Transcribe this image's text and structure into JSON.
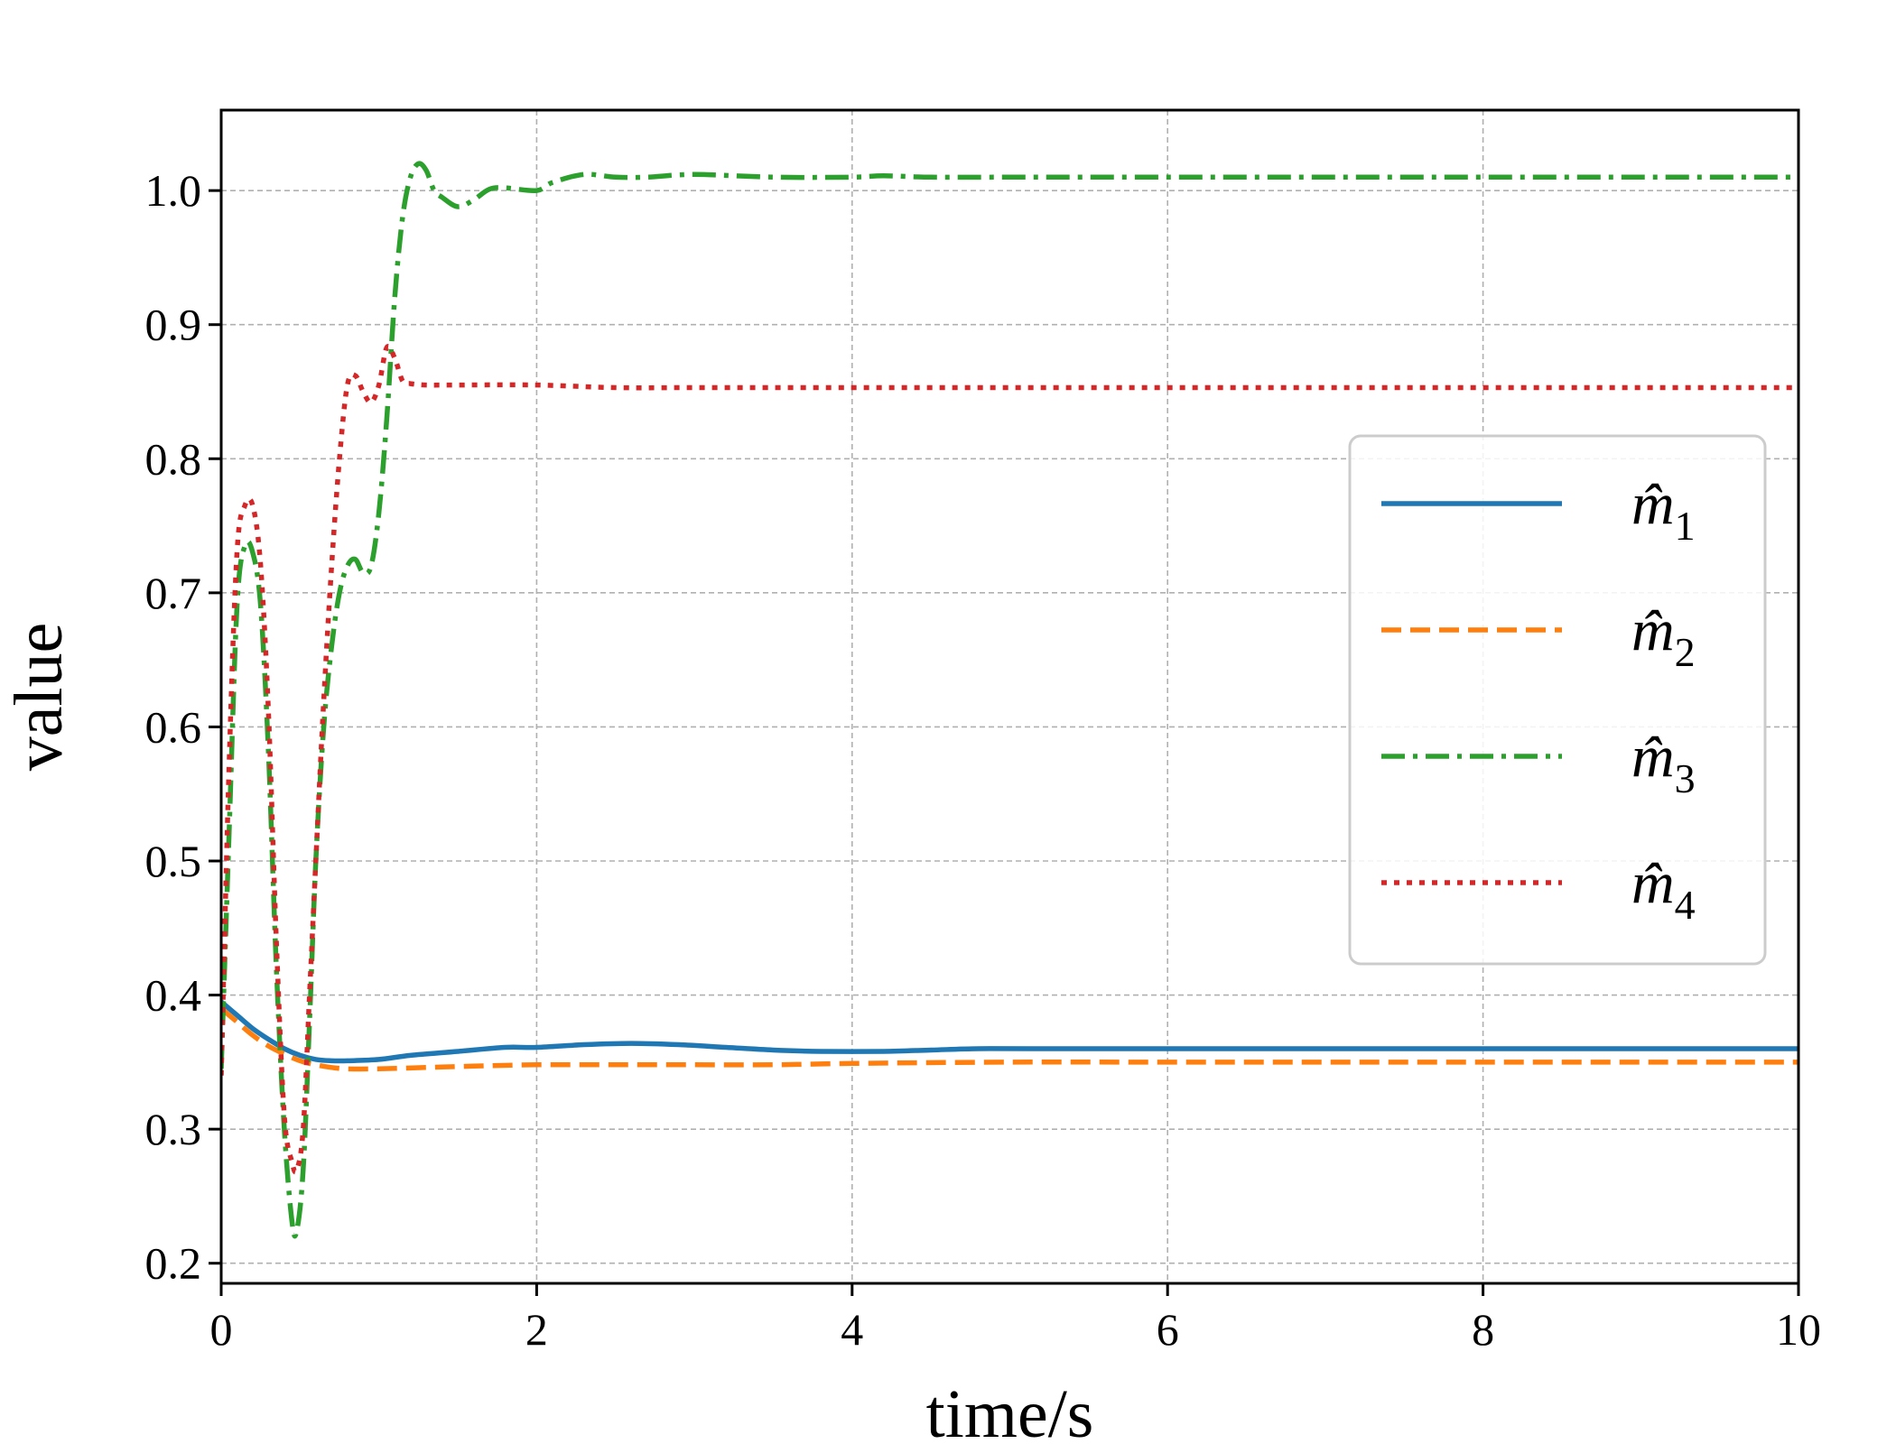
{
  "chart_data": {
    "type": "line",
    "title": "",
    "xlabel": "time/s",
    "ylabel": "value",
    "xlim": [
      0,
      10
    ],
    "ylim": [
      0.185,
      1.06
    ],
    "xticks": [
      0,
      2,
      4,
      6,
      8,
      10
    ],
    "xtick_labels": [
      "0",
      "2",
      "4",
      "6",
      "8",
      "10"
    ],
    "yticks": [
      0.2,
      0.3,
      0.4,
      0.5,
      0.6,
      0.7,
      0.8,
      0.9,
      1.0
    ],
    "ytick_labels": [
      "0.2",
      "0.3",
      "0.4",
      "0.5",
      "0.6",
      "0.7",
      "0.8",
      "0.9",
      "1.0"
    ],
    "grid": true,
    "legend_position": "center-right",
    "series": [
      {
        "name": "m̂1",
        "label_base": "m̂",
        "label_sub": "1",
        "color": "#1f77b4",
        "style": "solid",
        "x": [
          0,
          0.1,
          0.2,
          0.3,
          0.4,
          0.5,
          0.6,
          0.7,
          0.8,
          1.0,
          1.2,
          1.5,
          1.8,
          2.0,
          2.3,
          2.6,
          2.9,
          3.2,
          3.5,
          3.8,
          4.2,
          4.5,
          4.8,
          5.2,
          6,
          7,
          8,
          9,
          10
        ],
        "y": [
          0.395,
          0.385,
          0.375,
          0.367,
          0.36,
          0.355,
          0.352,
          0.351,
          0.351,
          0.352,
          0.355,
          0.358,
          0.361,
          0.361,
          0.363,
          0.364,
          0.363,
          0.361,
          0.359,
          0.358,
          0.358,
          0.359,
          0.36,
          0.36,
          0.36,
          0.36,
          0.36,
          0.36,
          0.36
        ]
      },
      {
        "name": "m̂2",
        "label_base": "m̂",
        "label_sub": "2",
        "color": "#ff7f0e",
        "style": "dashed",
        "x": [
          0,
          0.1,
          0.2,
          0.3,
          0.4,
          0.5,
          0.6,
          0.7,
          0.8,
          1.0,
          1.3,
          1.6,
          2.0,
          2.5,
          3.0,
          3.5,
          4.0,
          5,
          6,
          7,
          8,
          9,
          10
        ],
        "y": [
          0.39,
          0.38,
          0.37,
          0.362,
          0.356,
          0.351,
          0.348,
          0.346,
          0.345,
          0.345,
          0.346,
          0.347,
          0.348,
          0.348,
          0.348,
          0.348,
          0.349,
          0.35,
          0.35,
          0.35,
          0.35,
          0.35,
          0.35
        ]
      },
      {
        "name": "m̂3",
        "label_base": "m̂",
        "label_sub": "3",
        "color": "#2ca02c",
        "style": "dashdot",
        "x": [
          0,
          0.05,
          0.1,
          0.15,
          0.2,
          0.25,
          0.3,
          0.35,
          0.4,
          0.45,
          0.48,
          0.52,
          0.56,
          0.6,
          0.65,
          0.7,
          0.75,
          0.8,
          0.85,
          0.9,
          0.95,
          1.0,
          1.05,
          1.1,
          1.15,
          1.2,
          1.25,
          1.3,
          1.35,
          1.4,
          1.5,
          1.6,
          1.7,
          1.8,
          2.0,
          2.1,
          2.3,
          2.5,
          2.7,
          3.0,
          3.5,
          4.0,
          4.2,
          4.5,
          5,
          6,
          7,
          8,
          9,
          10
        ],
        "y": [
          0.345,
          0.52,
          0.69,
          0.735,
          0.73,
          0.69,
          0.58,
          0.42,
          0.3,
          0.23,
          0.225,
          0.27,
          0.38,
          0.5,
          0.6,
          0.66,
          0.7,
          0.72,
          0.725,
          0.715,
          0.72,
          0.76,
          0.83,
          0.92,
          0.98,
          1.01,
          1.02,
          1.015,
          1.0,
          0.995,
          0.988,
          0.993,
          1.001,
          1.002,
          1.0,
          1.006,
          1.012,
          1.01,
          1.01,
          1.012,
          1.01,
          1.01,
          1.011,
          1.01,
          1.01,
          1.01,
          1.01,
          1.01,
          1.01,
          1.01
        ]
      },
      {
        "name": "m̂4",
        "label_base": "m̂",
        "label_sub": "4",
        "color": "#d62728",
        "style": "dotted",
        "x": [
          0,
          0.05,
          0.1,
          0.15,
          0.2,
          0.25,
          0.3,
          0.35,
          0.4,
          0.45,
          0.48,
          0.52,
          0.56,
          0.6,
          0.65,
          0.7,
          0.75,
          0.8,
          0.85,
          0.9,
          0.95,
          1.0,
          1.05,
          1.1,
          1.15,
          1.2,
          1.3,
          1.5,
          2.0,
          2.5,
          3,
          4,
          5,
          6,
          7,
          8,
          9,
          10
        ],
        "y": [
          0.34,
          0.57,
          0.73,
          0.765,
          0.765,
          0.72,
          0.61,
          0.44,
          0.31,
          0.275,
          0.27,
          0.3,
          0.4,
          0.5,
          0.62,
          0.72,
          0.8,
          0.855,
          0.862,
          0.85,
          0.842,
          0.855,
          0.883,
          0.875,
          0.858,
          0.856,
          0.855,
          0.855,
          0.855,
          0.853,
          0.853,
          0.853,
          0.853,
          0.853,
          0.853,
          0.853,
          0.853,
          0.853
        ]
      }
    ]
  }
}
